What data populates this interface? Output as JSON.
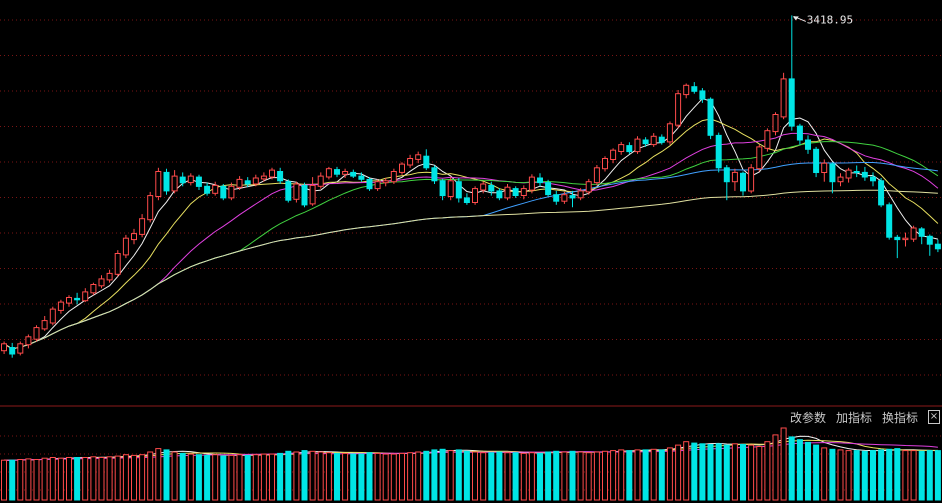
{
  "toolbar": {
    "modify_params": "改参数",
    "add_indicator": "加指标",
    "switch_indicator": "换指标",
    "close_glyph": "×"
  },
  "chart_data": {
    "type": "candlestick",
    "title": "",
    "peak_label": "3418.95",
    "grid": true,
    "price_range": [
      2580,
      3435
    ],
    "candles": [
      [
        2695,
        2710,
        2688,
        2715
      ],
      [
        2702,
        2688,
        2680,
        2712
      ],
      [
        2690,
        2710,
        2685,
        2715
      ],
      [
        2708,
        2725,
        2700,
        2730
      ],
      [
        2720,
        2745,
        2715,
        2750
      ],
      [
        2742,
        2760,
        2738,
        2770
      ],
      [
        2755,
        2785,
        2750,
        2790
      ],
      [
        2782,
        2800,
        2775,
        2805
      ],
      [
        2798,
        2810,
        2790,
        2815
      ],
      [
        2808,
        2805,
        2795,
        2820
      ],
      [
        2803,
        2822,
        2800,
        2830
      ],
      [
        2820,
        2838,
        2815,
        2842
      ],
      [
        2835,
        2850,
        2830,
        2858
      ],
      [
        2848,
        2862,
        2842,
        2870
      ],
      [
        2860,
        2905,
        2855,
        2912
      ],
      [
        2902,
        2938,
        2895,
        2945
      ],
      [
        2935,
        2948,
        2925,
        2958
      ],
      [
        2946,
        2980,
        2940,
        2990
      ],
      [
        2978,
        3030,
        2972,
        3038
      ],
      [
        3028,
        3082,
        3020,
        3090
      ],
      [
        3080,
        3040,
        3032,
        3088
      ],
      [
        3040,
        3072,
        3035,
        3085
      ],
      [
        3070,
        3058,
        3050,
        3080
      ],
      [
        3058,
        3072,
        3052,
        3078
      ],
      [
        3070,
        3050,
        3042,
        3075
      ],
      [
        3050,
        3035,
        3030,
        3058
      ],
      [
        3035,
        3052,
        3030,
        3060
      ],
      [
        3050,
        3025,
        3020,
        3055
      ],
      [
        3025,
        3050,
        3020,
        3058
      ],
      [
        3048,
        3065,
        3042,
        3072
      ],
      [
        3062,
        3055,
        3048,
        3070
      ],
      [
        3055,
        3068,
        3050,
        3075
      ],
      [
        3066,
        3072,
        3060,
        3080
      ],
      [
        3070,
        3085,
        3065,
        3090
      ],
      [
        3082,
        3062,
        3055,
        3090
      ],
      [
        3060,
        3020,
        3015,
        3065
      ],
      [
        3022,
        3055,
        3015,
        3060
      ],
      [
        3052,
        3010,
        3005,
        3058
      ],
      [
        3012,
        3052,
        3008,
        3070
      ],
      [
        3050,
        3072,
        3045,
        3080
      ],
      [
        3070,
        3088,
        3065,
        3092
      ],
      [
        3086,
        3076,
        3070,
        3092
      ],
      [
        3076,
        3082,
        3068,
        3088
      ],
      [
        3080,
        3072,
        3068,
        3086
      ],
      [
        3072,
        3065,
        3060,
        3080
      ],
      [
        3065,
        3045,
        3040,
        3070
      ],
      [
        3045,
        3060,
        3040,
        3065
      ],
      [
        3058,
        3062,
        3050,
        3068
      ],
      [
        3060,
        3082,
        3055,
        3088
      ],
      [
        3080,
        3098,
        3075,
        3102
      ],
      [
        3096,
        3110,
        3090,
        3118
      ],
      [
        3108,
        3118,
        3100,
        3125
      ],
      [
        3115,
        3090,
        3085,
        3130
      ],
      [
        3090,
        3062,
        3055,
        3095
      ],
      [
        3062,
        3030,
        3020,
        3066
      ],
      [
        3028,
        3062,
        3020,
        3070
      ],
      [
        3060,
        3025,
        3015,
        3068
      ],
      [
        3025,
        3015,
        3010,
        3035
      ],
      [
        3015,
        3045,
        3010,
        3050
      ],
      [
        3042,
        3055,
        3035,
        3060
      ],
      [
        3052,
        3040,
        3030,
        3060
      ],
      [
        3040,
        3025,
        3020,
        3046
      ],
      [
        3025,
        3048,
        3020,
        3055
      ],
      [
        3045,
        3030,
        3025,
        3050
      ],
      [
        3030,
        3045,
        3022,
        3052
      ],
      [
        3042,
        3070,
        3035,
        3076
      ],
      [
        3068,
        3058,
        3050,
        3078
      ],
      [
        3058,
        3032,
        3028,
        3064
      ],
      [
        3032,
        3018,
        3010,
        3040
      ],
      [
        3018,
        3032,
        3012,
        3038
      ],
      [
        3030,
        3025,
        3005,
        3040
      ],
      [
        3025,
        3040,
        3020,
        3046
      ],
      [
        3038,
        3060,
        3032,
        3066
      ],
      [
        3058,
        3090,
        3052,
        3096
      ],
      [
        3088,
        3110,
        3082,
        3115
      ],
      [
        3108,
        3128,
        3100,
        3132
      ],
      [
        3125,
        3140,
        3118,
        3146
      ],
      [
        3138,
        3125,
        3120,
        3145
      ],
      [
        3125,
        3152,
        3120,
        3158
      ],
      [
        3150,
        3142,
        3135,
        3156
      ],
      [
        3140,
        3158,
        3135,
        3165
      ],
      [
        3156,
        3145,
        3140,
        3162
      ],
      [
        3146,
        3185,
        3140,
        3190
      ],
      [
        3182,
        3250,
        3175,
        3258
      ],
      [
        3248,
        3268,
        3240,
        3272
      ],
      [
        3265,
        3255,
        3250,
        3275
      ],
      [
        3256,
        3238,
        3230,
        3262
      ],
      [
        3238,
        3160,
        3152,
        3242
      ],
      [
        3160,
        3090,
        3080,
        3166
      ],
      [
        3090,
        3060,
        3020,
        3096
      ],
      [
        3060,
        3080,
        3040,
        3088
      ],
      [
        3078,
        3040,
        3030,
        3082
      ],
      [
        3040,
        3090,
        3035,
        3098
      ],
      [
        3088,
        3135,
        3082,
        3140
      ],
      [
        3132,
        3170,
        3125,
        3175
      ],
      [
        3168,
        3205,
        3160,
        3210
      ],
      [
        3200,
        3282,
        3195,
        3295
      ],
      [
        3282,
        3180,
        3170,
        3418.95
      ],
      [
        3180,
        3150,
        3140,
        3185
      ],
      [
        3150,
        3130,
        3120,
        3160
      ],
      [
        3130,
        3080,
        3070,
        3135
      ],
      [
        3080,
        3100,
        3060,
        3108
      ],
      [
        3098,
        3060,
        3035,
        3102
      ],
      [
        3060,
        3070,
        3050,
        3078
      ],
      [
        3068,
        3085,
        3058,
        3090
      ],
      [
        3082,
        3080,
        3070,
        3095
      ],
      [
        3080,
        3070,
        3062,
        3092
      ],
      [
        3070,
        3062,
        3050,
        3080
      ],
      [
        3062,
        3010,
        3005,
        3068
      ],
      [
        3010,
        2940,
        2935,
        3015
      ],
      [
        2940,
        2935,
        2895,
        2945
      ],
      [
        2935,
        2938,
        2920,
        2950
      ],
      [
        2936,
        2960,
        2930,
        2965
      ],
      [
        2958,
        2942,
        2925,
        2962
      ],
      [
        2942,
        2925,
        2900,
        2946
      ],
      [
        2925,
        2915,
        2908,
        2935
      ]
    ],
    "volumes": [
      58,
      58,
      59,
      60,
      59,
      61,
      62,
      61,
      62,
      62,
      62,
      63,
      62,
      63,
      64,
      66,
      65,
      66,
      70,
      75,
      73,
      70,
      68,
      67,
      66,
      65,
      66,
      64,
      65,
      66,
      65,
      66,
      67,
      67,
      68,
      71,
      70,
      72,
      71,
      70,
      69,
      68,
      68,
      67,
      67,
      69,
      68,
      67,
      67,
      68,
      69,
      70,
      71,
      73,
      74,
      72,
      73,
      71,
      70,
      69,
      69,
      70,
      69,
      69,
      68,
      69,
      68,
      70,
      71,
      70,
      71,
      70,
      69,
      70,
      71,
      72,
      73,
      72,
      73,
      73,
      74,
      73,
      76,
      80,
      85,
      83,
      82,
      81,
      82,
      80,
      82,
      81,
      80,
      78,
      85,
      95,
      105,
      92,
      88,
      84,
      80,
      76,
      74,
      73,
      72,
      72,
      71,
      72,
      73,
      74,
      75,
      72,
      72,
      71,
      72,
      72
    ]
  }
}
